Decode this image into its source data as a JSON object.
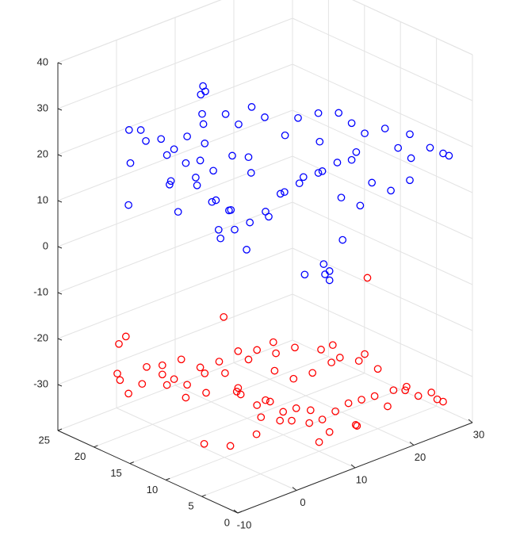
{
  "chart_data": {
    "type": "scatter",
    "title": "",
    "xlabel": "",
    "ylabel": "",
    "zlabel": "",
    "grid": true,
    "xlim": [
      -10,
      30
    ],
    "ylim": [
      0,
      25
    ],
    "zlim": [
      -40,
      40
    ],
    "x_ticks": [
      "-10",
      "0",
      "10",
      "20",
      "30"
    ],
    "y_ticks": [
      "0",
      "5",
      "10",
      "15",
      "20",
      "25"
    ],
    "z_ticks": [
      "-30",
      "-20",
      "-10",
      "0",
      "10",
      "20",
      "30",
      "40"
    ],
    "series": [
      {
        "color": "#0000ff",
        "marker": "circle-open",
        "points": [
          [
            -9.0,
            16.0,
            15.0
          ],
          [
            -4.0,
            20.0,
            26.0
          ],
          [
            -4.2,
            17.5,
            25.5
          ],
          [
            -5.0,
            19.0,
            20.0
          ],
          [
            -3.0,
            15.0,
            18.0
          ],
          [
            -2.0,
            20.0,
            25.0
          ],
          [
            -1.0,
            18.0,
            24.0
          ],
          [
            0.0,
            17.0,
            22.0
          ],
          [
            1.0,
            16.0,
            25.0
          ],
          [
            -2.0,
            16.0,
            16.0
          ],
          [
            0.0,
            14.0,
            18.0
          ],
          [
            2.0,
            15.0,
            20.0
          ],
          [
            -1.0,
            13.0,
            17.5
          ],
          [
            0.0,
            18.0,
            20.0
          ],
          [
            1.0,
            12.0,
            14.0
          ],
          [
            -1.0,
            10.0,
            10.0
          ],
          [
            0.5,
            9.0,
            10.0
          ],
          [
            2.0,
            11.0,
            12.0
          ],
          [
            3.0,
            14.0,
            18.0
          ],
          [
            4.0,
            16.0,
            22.0
          ],
          [
            5.0,
            17.0,
            25.0
          ],
          [
            6.0,
            18.0,
            26.0
          ],
          [
            7.0,
            19.0,
            29.0
          ],
          [
            8.0,
            19.5,
            30.0
          ],
          [
            9.0,
            20.0,
            28.0
          ],
          [
            10.0,
            18.0,
            24.0
          ],
          [
            11.0,
            17.0,
            22.0
          ],
          [
            12.0,
            16.0,
            26.0
          ],
          [
            13.0,
            15.0,
            24.0
          ],
          [
            14.0,
            13.0,
            21.0
          ],
          [
            15.0,
            12.0,
            25.0
          ],
          [
            16.0,
            10.0,
            27.0
          ],
          [
            17.0,
            8.0,
            28.0
          ],
          [
            18.0,
            7.0,
            26.0
          ],
          [
            19.0,
            6.0,
            24.0
          ],
          [
            20.0,
            4.0,
            26.0
          ],
          [
            21.0,
            3.0,
            22.0
          ],
          [
            22.0,
            2.0,
            20.0
          ],
          [
            23.0,
            3.0,
            24.0
          ],
          [
            24.0,
            1.0,
            22.0
          ],
          [
            25.0,
            0.0,
            21.0
          ],
          [
            26.0,
            0.0,
            20.0
          ],
          [
            20.0,
            8.0,
            18.0
          ],
          [
            18.0,
            9.0,
            16.0
          ],
          [
            16.0,
            10.0,
            14.0
          ],
          [
            14.0,
            11.0,
            12.0
          ],
          [
            12.0,
            12.0,
            10.0
          ],
          [
            10.0,
            12.0,
            6.0
          ],
          [
            8.0,
            13.0,
            5.0
          ],
          [
            6.0,
            14.0,
            8.0
          ],
          [
            4.0,
            15.0,
            10.0
          ],
          [
            3.0,
            13.0,
            4.0
          ],
          [
            5.0,
            11.0,
            2.0
          ],
          [
            7.0,
            10.0,
            10.0
          ],
          [
            9.0,
            9.0,
            14.0
          ],
          [
            11.0,
            8.0,
            17.0
          ],
          [
            13.0,
            7.0,
            18.0
          ],
          [
            15.0,
            6.0,
            12.0
          ],
          [
            17.0,
            5.0,
            10.0
          ],
          [
            19.0,
            5.0,
            14.0
          ],
          [
            21.0,
            4.0,
            12.0
          ],
          [
            23.0,
            3.0,
            14.0
          ],
          [
            12.0,
            6.0,
            -1.0
          ],
          [
            11.0,
            5.0,
            -2.0
          ],
          [
            13.0,
            6.0,
            -3.0
          ],
          [
            13.0,
            6.0,
            -5.0
          ],
          [
            10.0,
            7.0,
            -3.0
          ],
          [
            14.0,
            5.0,
            4.0
          ],
          [
            7.0,
            12.0,
            17.0
          ],
          [
            5.0,
            13.0,
            21.0
          ],
          [
            2.0,
            17.0,
            18.0
          ],
          [
            -3.0,
            14.0,
            12.0
          ],
          [
            9.0,
            14.0,
            18.0
          ],
          [
            15.0,
            9.0,
            22.0
          ],
          [
            18.0,
            7.0,
            18.0
          ]
        ]
      },
      {
        "color": "#ff0000",
        "marker": "circle-open",
        "points": [
          [
            -9.0,
            16.0,
            -26.0
          ],
          [
            -6.0,
            20.0,
            -26.0
          ],
          [
            -8.0,
            18.0,
            -25.0
          ],
          [
            -4.5,
            21.0,
            -21.0
          ],
          [
            -3.0,
            19.0,
            -29.0
          ],
          [
            -2.0,
            17.0,
            -26.0
          ],
          [
            -1.0,
            20.0,
            -27.0
          ],
          [
            0.0,
            18.0,
            -30.0
          ],
          [
            1.0,
            16.0,
            -29.0
          ],
          [
            2.0,
            17.0,
            -33.0
          ],
          [
            3.0,
            15.0,
            -31.0
          ],
          [
            4.0,
            16.0,
            -28.0
          ],
          [
            5.0,
            14.0,
            -27.0
          ],
          [
            6.0,
            13.0,
            -30.0
          ],
          [
            7.0,
            14.0,
            -32.0
          ],
          [
            8.0,
            12.0,
            -34.0
          ],
          [
            9.0,
            11.0,
            -33.0
          ],
          [
            10.0,
            10.0,
            -35.0
          ],
          [
            11.0,
            9.0,
            -34.0
          ],
          [
            12.0,
            8.0,
            -37.0
          ],
          [
            13.0,
            7.0,
            -36.0
          ],
          [
            14.0,
            6.0,
            -34.0
          ],
          [
            15.0,
            5.0,
            -32.0
          ],
          [
            16.0,
            4.0,
            -31.0
          ],
          [
            17.0,
            3.0,
            -30.0
          ],
          [
            18.0,
            2.0,
            -32.0
          ],
          [
            19.0,
            2.0,
            -29.0
          ],
          [
            20.0,
            1.0,
            -28.0
          ],
          [
            21.0,
            2.0,
            -30.0
          ],
          [
            22.0,
            1.0,
            -31.0
          ],
          [
            23.0,
            0.0,
            -30.0
          ],
          [
            24.0,
            0.0,
            -32.0
          ],
          [
            25.0,
            0.0,
            -33.0
          ],
          [
            20.0,
            5.0,
            -27.0
          ],
          [
            18.0,
            6.0,
            -25.0
          ],
          [
            16.0,
            7.0,
            -24.0
          ],
          [
            14.0,
            8.0,
            -22.0
          ],
          [
            12.0,
            10.0,
            -22.0
          ],
          [
            10.0,
            11.0,
            -23.0
          ],
          [
            8.0,
            12.0,
            -22.0
          ],
          [
            6.0,
            13.0,
            -22.0
          ],
          [
            4.0,
            14.0,
            -24.0
          ],
          [
            2.0,
            15.0,
            -25.0
          ],
          [
            0.0,
            16.0,
            -23.0
          ],
          [
            -2.0,
            17.0,
            -24.0
          ],
          [
            9.0,
            14.0,
            -26.0
          ],
          [
            11.0,
            12.0,
            -28.0
          ],
          [
            13.0,
            11.0,
            -30.0
          ],
          [
            15.0,
            10.0,
            -29.0
          ],
          [
            17.0,
            9.0,
            -27.0
          ],
          [
            7.0,
            10.0,
            -31.0
          ],
          [
            5.0,
            9.0,
            -33.0
          ],
          [
            3.0,
            8.0,
            -35.0
          ],
          [
            1.0,
            10.0,
            -38.0
          ],
          [
            -1.0,
            12.0,
            -38.0
          ],
          [
            9.0,
            8.0,
            -35.0
          ],
          [
            11.0,
            7.0,
            -33.0
          ],
          [
            13.0,
            6.0,
            -38.0
          ],
          [
            15.0,
            4.0,
            -36.0
          ],
          [
            19.0,
            6.0,
            -24.0
          ],
          [
            4.0,
            11.0,
            -29.0
          ],
          [
            7.0,
            8.0,
            -34.0
          ],
          [
            10.0,
            5.0,
            -38.0
          ],
          [
            14.0,
            3.0,
            -35.0
          ],
          [
            16.0,
            8.0,
            -22.0
          ],
          [
            17.0,
            4.0,
            -5.0
          ],
          [
            -7.0,
            18.0,
            -16.0
          ],
          [
            6.0,
            15.0,
            -16.0
          ],
          [
            0.0,
            17.0,
            -28.0
          ],
          [
            12.0,
            13.0,
            -23.0
          ]
        ]
      }
    ]
  }
}
